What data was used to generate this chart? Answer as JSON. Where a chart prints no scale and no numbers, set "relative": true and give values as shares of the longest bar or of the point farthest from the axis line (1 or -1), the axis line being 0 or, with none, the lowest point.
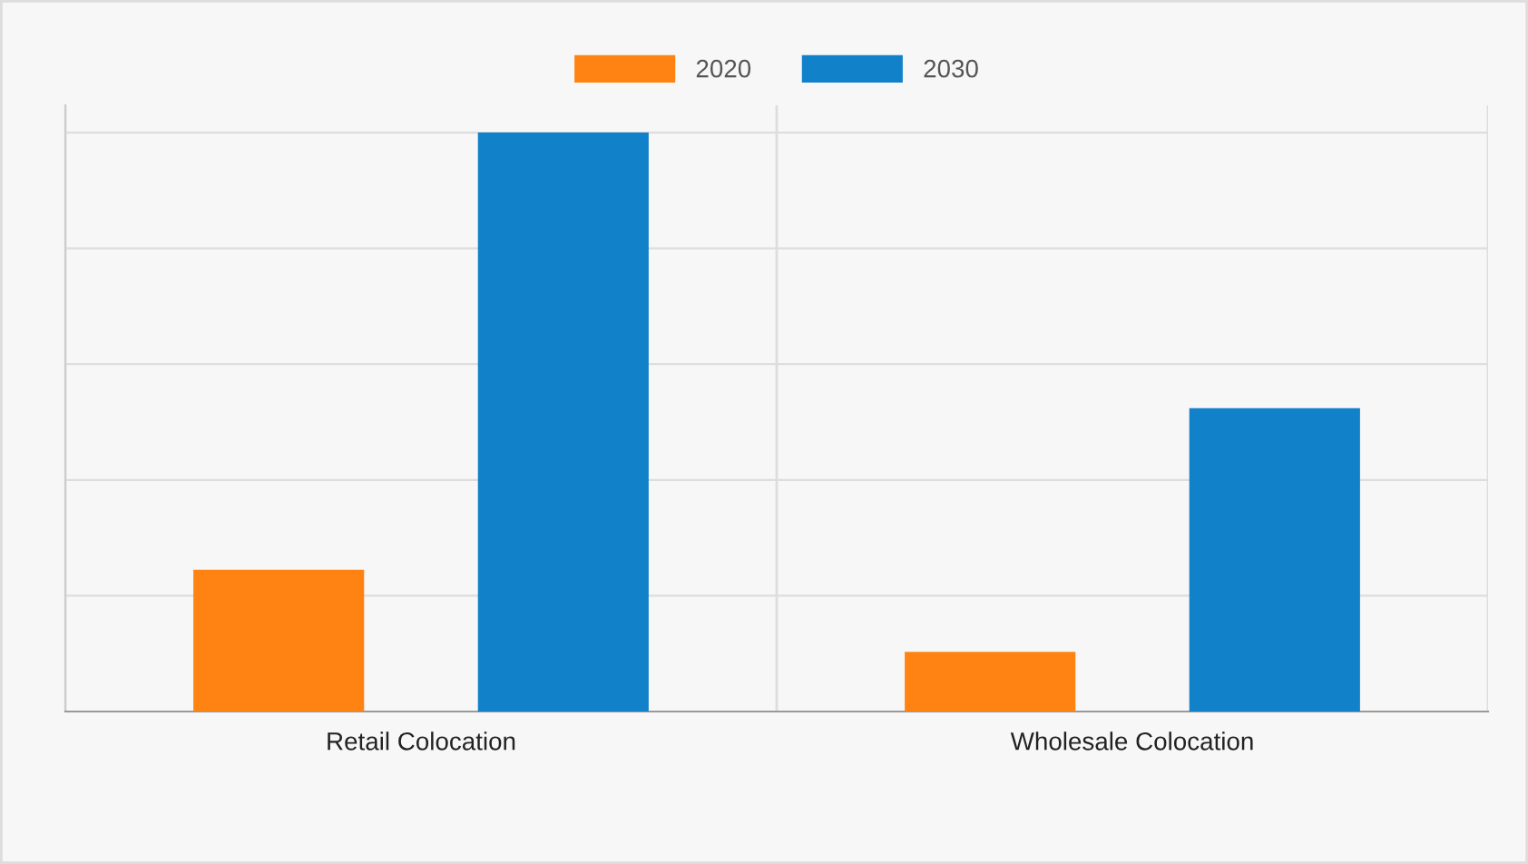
{
  "chart_data": {
    "type": "bar",
    "relative": true,
    "categories": [
      "Retail Colocation",
      "Wholesale Colocation"
    ],
    "series": [
      {
        "name": "2020",
        "color": "#fe8313",
        "values": [
          0.245,
          0.103
        ]
      },
      {
        "name": "2030",
        "color": "#1181c9",
        "values": [
          1,
          0.524
        ]
      }
    ],
    "grid": true,
    "legend": "top"
  }
}
